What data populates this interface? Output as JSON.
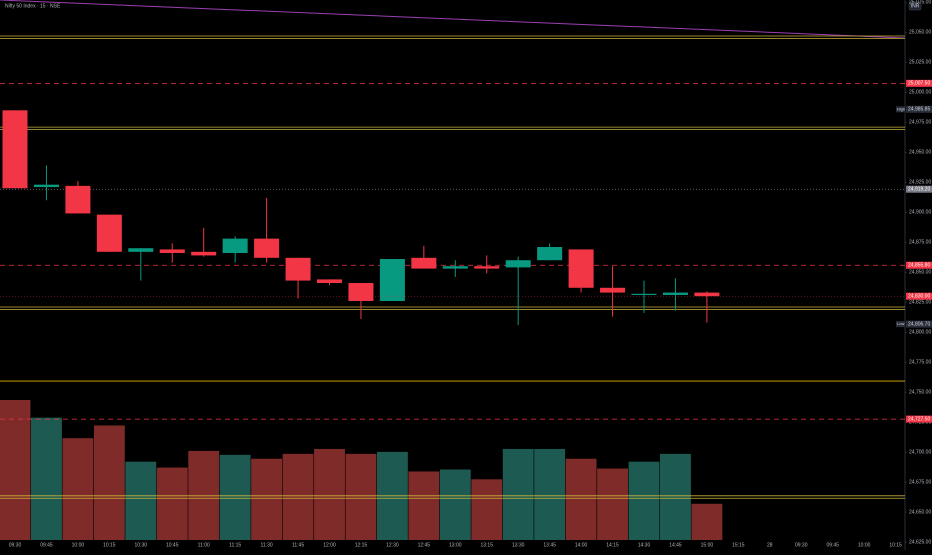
{
  "chart_data": {
    "type": "candlestick",
    "title": "Nifty 50 Index · 15 · NSE",
    "currency": "INR",
    "categories": [
      "09:30",
      "09:45",
      "10:00",
      "10:15",
      "10:30",
      "10:45",
      "11:00",
      "11:15",
      "11:30",
      "11:45",
      "12:00",
      "12:15",
      "12:30",
      "12:45",
      "13:00",
      "13:15",
      "13:30",
      "13:45",
      "14:00",
      "14:15",
      "14:30",
      "14:45",
      "15:00",
      "15:15",
      "28",
      "09:30",
      "09:45",
      "10:00",
      "10:15"
    ],
    "open": [
      24985,
      24921,
      24922,
      24898,
      24867,
      24869,
      24867,
      24866,
      24878,
      24862,
      24844,
      24841,
      24826,
      24862,
      24853,
      24855,
      24854,
      24860,
      24869,
      24837,
      24831,
      24831,
      24833,
      null,
      null,
      null,
      null,
      null,
      null
    ],
    "high": [
      24985,
      24939,
      24926,
      24898,
      24870,
      24874,
      24887,
      24880,
      24912,
      24862,
      24844,
      24841,
      24861,
      24872,
      24860,
      24864,
      24863,
      24874,
      24869,
      24855,
      24843,
      24845,
      24834,
      null,
      null,
      null,
      null,
      null,
      null
    ],
    "low": [
      24920,
      24910,
      24899,
      24867,
      24843,
      24858,
      24863,
      24858,
      24858,
      24828,
      24839,
      24811,
      24826,
      24853,
      24846,
      24849,
      24806,
      24860,
      24833,
      24813,
      24816,
      24818,
      24808,
      null,
      null,
      null,
      null,
      null,
      null
    ],
    "close": [
      24920,
      24923,
      24899,
      24867,
      24870,
      24866,
      24864,
      24878,
      24862,
      24843,
      24841,
      24826,
      24861,
      24853,
      24855,
      24853,
      24860,
      24871,
      24837,
      24833,
      24832,
      24833,
      24830,
      null,
      null,
      null,
      null,
      null,
      null
    ],
    "volume": [
      143,
      125,
      104,
      117,
      80,
      74,
      91,
      87,
      83,
      88,
      93,
      88,
      90,
      70,
      72,
      62,
      93,
      93,
      83,
      73,
      80,
      88,
      37,
      null,
      null,
      null,
      null,
      null,
      null
    ],
    "up_color": "#089981",
    "down_color": "#f23645",
    "volume_up_color": "#1d5b52",
    "volume_down_color": "#7f2b29",
    "ylim": [
      24620,
      25077
    ],
    "yticks": [
      {
        "value": 24625,
        "label": "24,625.00"
      },
      {
        "value": 24650,
        "label": "24,650.00"
      },
      {
        "value": 24675,
        "label": "24,675.00"
      },
      {
        "value": 24700,
        "label": "24,700.00"
      },
      {
        "value": 24725,
        "label": "24,725.00"
      },
      {
        "value": 24750,
        "label": "24,750.00"
      },
      {
        "value": 24775,
        "label": "24,775.00"
      },
      {
        "value": 24800,
        "label": "24,800.00"
      },
      {
        "value": 24825,
        "label": "24,825.00"
      },
      {
        "value": 24850,
        "label": "24,850.00"
      },
      {
        "value": 24875,
        "label": "24,875.00"
      },
      {
        "value": 24900,
        "label": "24,900.00"
      },
      {
        "value": 24925,
        "label": "24,925.00"
      },
      {
        "value": 24950,
        "label": "24,950.00"
      },
      {
        "value": 24975,
        "label": "24,975.00"
      },
      {
        "value": 25000,
        "label": "25,000.00"
      },
      {
        "value": 25025,
        "label": "25,025.00"
      },
      {
        "value": 25050,
        "label": "25,050.00"
      },
      {
        "value": 25075,
        "label": "25,075.00"
      }
    ],
    "levels": [
      {
        "value": 25046,
        "color": "#c9b23a",
        "style": "double"
      },
      {
        "value": 25007.5,
        "label": "25,007.50",
        "color": "#f23645",
        "style": "dashed"
      },
      {
        "value": 24970,
        "color": "#c9b23a",
        "style": "double"
      },
      {
        "value": 24919.2,
        "label": "24,919.20",
        "color": "#787b86",
        "style": "dotted"
      },
      {
        "value": 24855.8,
        "label": "24,855.80",
        "color": "#f23645",
        "style": "dashed"
      },
      {
        "value": 24820,
        "color": "#c9b23a",
        "style": "double"
      },
      {
        "value": 24759.2,
        "color": "#e0b400",
        "style": "solid"
      },
      {
        "value": 24727.5,
        "label": "24,727.50",
        "color": "#f23645",
        "style": "dashed"
      },
      {
        "value": 24662.5,
        "color": "#c9b23a",
        "style": "double"
      }
    ],
    "high_marker": {
      "text": "High",
      "value": 24985.85,
      "label": "24,985.85"
    },
    "low_marker": {
      "text": "Low",
      "value": 24806.7,
      "label": "24,806.70"
    },
    "last_price": {
      "value": 24830,
      "label": "24,830.00"
    }
  }
}
